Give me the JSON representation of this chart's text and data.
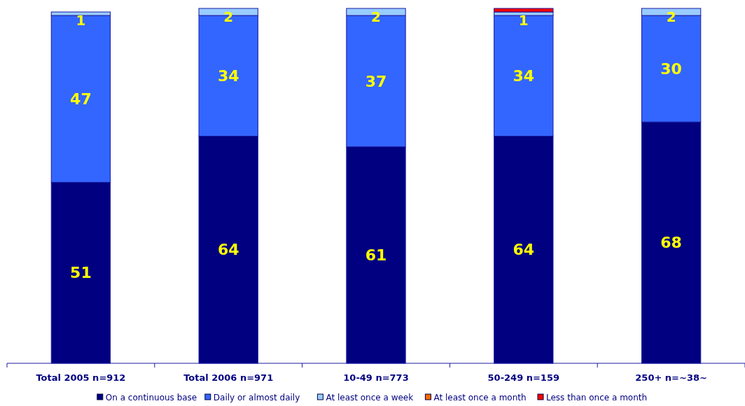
{
  "chart_data": {
    "type": "bar",
    "stacked": true,
    "categories": [
      "Total 2005 n=912",
      "Total 2006 n=971",
      "10-49 n=773",
      "50-249 n=159",
      "250+ n=~38~"
    ],
    "ylim": [
      0,
      100
    ],
    "tick_labels": "x",
    "legend": "bottom",
    "grid": false,
    "series": [
      {
        "name": "On a continuous base",
        "color": "#000080",
        "values": [
          51,
          64,
          61,
          64,
          68
        ],
        "value_labels": [
          "51",
          "64",
          "61",
          "64",
          "68"
        ]
      },
      {
        "name": "Daily or almost daily",
        "color": "#3366ff",
        "values": [
          47,
          34,
          37,
          34,
          30
        ],
        "value_labels": [
          "47",
          "34",
          "37",
          "34",
          "30"
        ]
      },
      {
        "name": "At least once a week",
        "color": "#99ccff",
        "values": [
          1,
          2,
          2,
          1,
          2
        ],
        "value_labels": [
          "1",
          "2",
          "2",
          "1",
          "2"
        ]
      },
      {
        "name": "At least once a month",
        "color": "#ff6600",
        "values": [
          0,
          0,
          0,
          0,
          0
        ],
        "value_labels": [
          null,
          null,
          null,
          null,
          null
        ]
      },
      {
        "name": "Less than once a month",
        "color": "#ff0000",
        "values": [
          0,
          0,
          0,
          1,
          0
        ],
        "value_labels": [
          null,
          null,
          null,
          null,
          null
        ]
      }
    ]
  }
}
